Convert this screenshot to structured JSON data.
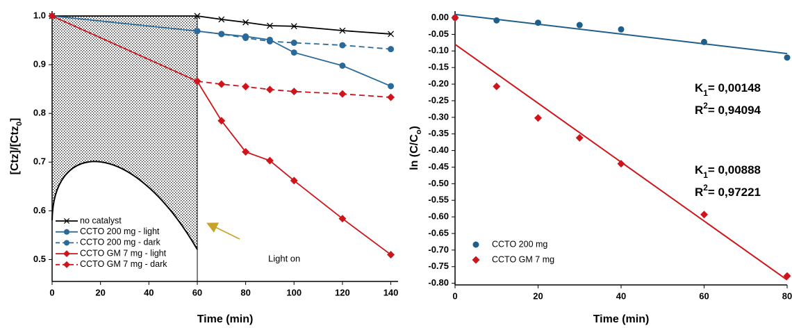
{
  "chart_data": [
    {
      "type": "line",
      "xlabel": "Time (min)",
      "ylabel": {
        "parts": [
          "[Ctz]/[Ctz",
          "0",
          "]"
        ],
        "shift": "sub"
      },
      "xlim": [
        0,
        143
      ],
      "ylim": [
        0.455,
        1.01
      ],
      "xticks": [
        0,
        20,
        40,
        60,
        80,
        100,
        120,
        140
      ],
      "yticks": [
        0.5,
        0.6,
        0.7,
        0.8,
        0.9,
        {
          "value": 1,
          "label": "1.0"
        }
      ],
      "series": [
        {
          "name": "no catalyst",
          "color": "#000000",
          "marker": "x",
          "dashed": false,
          "x": [
            0,
            60,
            70,
            80,
            90,
            100,
            120,
            140
          ],
          "values": [
            1.0,
            1.0,
            0.993,
            0.987,
            0.98,
            0.979,
            0.97,
            0.963
          ]
        },
        {
          "name": "CCTO 200 mg - light",
          "color": "#2a6a9a",
          "marker": "circle",
          "dashed": false,
          "x": [
            0,
            60,
            70,
            80,
            90,
            100,
            120,
            140
          ],
          "values": [
            1.0,
            0.969,
            0.963,
            0.958,
            0.951,
            0.925,
            0.898,
            0.856
          ]
        },
        {
          "name": "CCTO 200 mg - dark",
          "color": "#2a6a9a",
          "marker": "circle",
          "dashed": true,
          "x": [
            60,
            70,
            80,
            90,
            100,
            120,
            140
          ],
          "values": [
            0.969,
            0.963,
            0.955,
            0.948,
            0.945,
            0.94,
            0.932
          ]
        },
        {
          "name": "CCTO GM 7 mg - light",
          "color": "#d0141b",
          "marker": "diamond",
          "dashed": false,
          "x": [
            0,
            60,
            70,
            80,
            90,
            100,
            120,
            140
          ],
          "values": [
            1.0,
            0.866,
            0.785,
            0.721,
            0.703,
            0.662,
            0.584,
            0.51
          ]
        },
        {
          "name": "CCTO GM 7 mg - dark",
          "color": "#d0141b",
          "marker": "diamond",
          "dashed": true,
          "x": [
            60,
            70,
            80,
            90,
            100,
            120,
            140
          ],
          "values": [
            0.866,
            0.86,
            0.855,
            0.849,
            0.845,
            0.84,
            0.833
          ]
        }
      ],
      "annotation": {
        "text": "Light on",
        "color": "#c9a227"
      }
    },
    {
      "type": "scatter",
      "xlabel": "Time (min)",
      "ylabel": {
        "parts": [
          "ln (C/C",
          "o",
          ")"
        ],
        "shift": "sub"
      },
      "xlim": [
        0,
        80
      ],
      "ylim": [
        -0.805,
        0.02
      ],
      "xticks": [
        0,
        20,
        40,
        60,
        80
      ],
      "yticks": [
        {
          "value": 0,
          "label": "0.00"
        },
        {
          "value": -0.05,
          "label": "-0.05"
        },
        {
          "value": -0.1,
          "label": "-0.10"
        },
        {
          "value": -0.15,
          "label": "-0.15"
        },
        {
          "value": -0.2,
          "label": "-0.20"
        },
        {
          "value": -0.25,
          "label": "-0.25"
        },
        {
          "value": -0.3,
          "label": "-0.30"
        },
        {
          "value": -0.35,
          "label": "-0.35"
        },
        {
          "value": -0.4,
          "label": "-0.40"
        },
        {
          "value": -0.45,
          "label": "-0.45"
        },
        {
          "value": -0.5,
          "label": "-0.50"
        },
        {
          "value": -0.55,
          "label": "-0.55"
        },
        {
          "value": -0.6,
          "label": "-0.60"
        },
        {
          "value": -0.65,
          "label": "-0.65"
        },
        {
          "value": -0.7,
          "label": "-0.70"
        },
        {
          "value": -0.75,
          "label": "-0.75"
        },
        {
          "value": -0.8,
          "label": "-0.80"
        }
      ],
      "series": [
        {
          "name": "CCTO 200 mg",
          "color": "#1f5f8b",
          "marker": "circle",
          "x": [
            0,
            10,
            20,
            30,
            40,
            60,
            80
          ],
          "values": [
            0,
            -0.008,
            -0.015,
            -0.022,
            -0.035,
            -0.073,
            -0.12
          ]
        },
        {
          "name": "CCTO GM 7 mg",
          "color": "#d0141b",
          "marker": "diamond",
          "x": [
            0,
            10,
            20,
            30,
            40,
            60,
            80
          ],
          "values": [
            0,
            -0.207,
            -0.302,
            -0.362,
            -0.44,
            -0.593,
            -0.778
          ]
        }
      ],
      "fit_lines": [
        {
          "color": "#1f5f8b",
          "x": [
            0,
            80
          ],
          "values": [
            0.01,
            -0.108
          ]
        },
        {
          "color": "#d0141b",
          "x": [
            0,
            80
          ],
          "values": [
            -0.08,
            -0.79
          ]
        }
      ],
      "annotations": [
        {
          "color": "#1f5f8b",
          "lines": [
            {
              "parts": [
                "K",
                "1",
                "= 0,00148"
              ],
              "shift": "sub"
            },
            {
              "parts": [
                "R",
                "2",
                "= 0,94094"
              ],
              "shift": "super"
            }
          ]
        },
        {
          "color": "#d0141b",
          "lines": [
            {
              "parts": [
                "K",
                "1",
                "= 0,00888"
              ],
              "shift": "sub"
            },
            {
              "parts": [
                "R",
                "2",
                "= 0,97221"
              ],
              "shift": "super"
            }
          ]
        }
      ]
    }
  ]
}
